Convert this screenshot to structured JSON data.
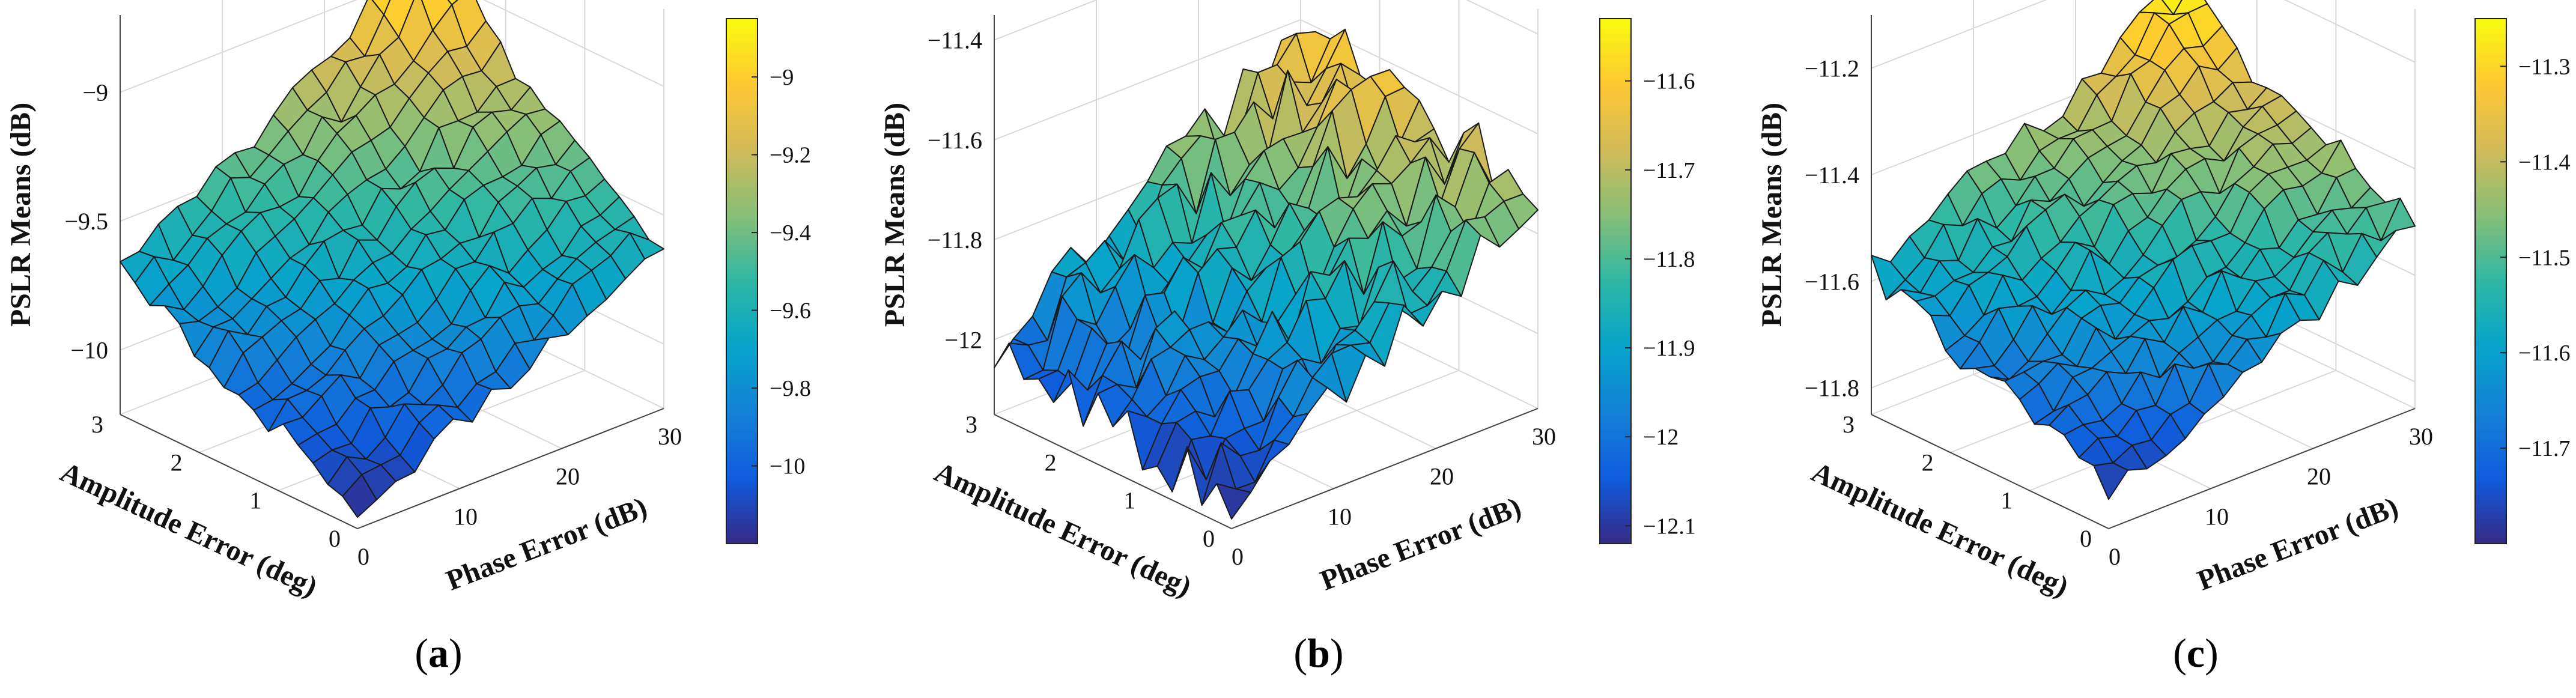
{
  "colors": {
    "parula": [
      "#352a87",
      "#0f5cdd",
      "#1481d6",
      "#06a4ca",
      "#2eb7a4",
      "#87bf77",
      "#d1bb59",
      "#fec832",
      "#f9fb0e"
    ],
    "mesh_edge": "#1a1a1a",
    "grid": "#d9d9d9"
  },
  "chart_data": [
    {
      "type": "surface",
      "panel_label": "a",
      "xlabel": "Amplitude Error (deg)",
      "ylabel": "Phase Error (dB)",
      "zlabel": "PSLR Means (dB)",
      "x_range": [
        0,
        3
      ],
      "y_range": [
        0,
        30
      ],
      "x_ticks": [
        0,
        1,
        2,
        3
      ],
      "y_ticks": [
        0,
        10,
        20,
        30
      ],
      "z_range": [
        -10.25,
        -8.7
      ],
      "z_ticks": [
        -10,
        -9.5,
        -9
      ],
      "z_tick_labels": [
        "−10",
        "−9.5",
        "−9"
      ],
      "colorbar_range": [
        -10.2,
        -8.85
      ],
      "colorbar_ticks": [
        -10,
        -9.8,
        -9.6,
        -9.4,
        -9.2,
        -9
      ],
      "colorbar_tick_labels": [
        "−10",
        "−9.8",
        "−9.6",
        "−9.4",
        "−9.2",
        "−9"
      ],
      "grid_size": 16,
      "z_corners": [
        -10.18,
        -9.62,
        -9.7,
        -8.95
      ],
      "noise": 0.05,
      "peak": {
        "value": 0.16,
        "at": [
          0.9,
          0.92
        ]
      },
      "seed": 11
    },
    {
      "type": "surface",
      "panel_label": "b",
      "xlabel": "Amplitude Error (deg)",
      "ylabel": "Phase Error (dB)",
      "zlabel": "PSLR Means (dB)",
      "x_range": [
        0,
        3
      ],
      "y_range": [
        0,
        30
      ],
      "x_ticks": [
        0,
        1,
        2,
        3
      ],
      "y_ticks": [
        0,
        10,
        20,
        30
      ],
      "z_range": [
        -12.15,
        -11.35
      ],
      "z_ticks": [
        -12,
        -11.8,
        -11.6,
        -11.4
      ],
      "z_tick_labels": [
        "−12",
        "−11.8",
        "−11.6",
        "−11.4"
      ],
      "colorbar_range": [
        -12.12,
        -11.53
      ],
      "colorbar_ticks": [
        -12.1,
        -12,
        -11.9,
        -11.8,
        -11.7,
        -11.6
      ],
      "colorbar_tick_labels": [
        "−12.1",
        "−12",
        "−11.9",
        "−11.8",
        "−11.7",
        "−11.6"
      ],
      "grid_size": 16,
      "z_corners": [
        -12.1,
        -11.72,
        -12.0,
        -11.62
      ],
      "noise": 0.06,
      "peak": {
        "value": 0.05,
        "at": [
          0.75,
          0.85
        ]
      },
      "seed": 23
    },
    {
      "type": "surface",
      "panel_label": "c",
      "xlabel": "Amplitude Error (deg)",
      "ylabel": "Phase Error (dB)",
      "zlabel": "PSLR Means (dB)",
      "x_range": [
        0,
        3
      ],
      "y_range": [
        0,
        30
      ],
      "x_ticks": [
        0,
        1,
        2,
        3
      ],
      "y_ticks": [
        0,
        10,
        20,
        30
      ],
      "z_range": [
        -11.85,
        -11.1
      ],
      "z_ticks": [
        -11.8,
        -11.6,
        -11.4,
        -11.2
      ],
      "z_tick_labels": [
        "−11.8",
        "−11.6",
        "−11.4",
        "−11.2"
      ],
      "colorbar_range": [
        -11.8,
        -11.25
      ],
      "colorbar_ticks": [
        -11.7,
        -11.6,
        -11.5,
        -11.4,
        -11.3
      ],
      "colorbar_tick_labels": [
        "−11.7",
        "−11.6",
        "−11.5",
        "−11.4",
        "−11.3"
      ],
      "grid_size": 16,
      "z_corners": [
        -11.78,
        -11.5,
        -11.58,
        -11.3
      ],
      "noise": 0.03,
      "peak": {
        "value": 0.06,
        "at": [
          0.9,
          0.92
        ]
      },
      "seed": 37
    }
  ]
}
